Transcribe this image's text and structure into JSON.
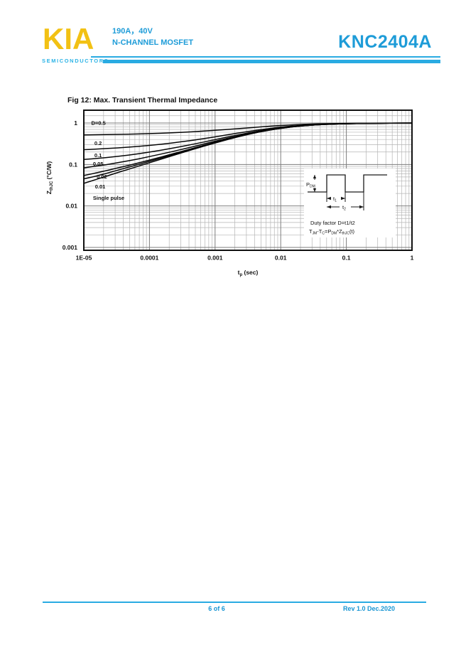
{
  "header": {
    "logo_text": "KIA",
    "logo_subtitle": "SEMICONDUCTORS",
    "spec_line1": "190A，40V",
    "spec_line2": "N-CHANNEL MOSFET",
    "part_number": "KNC2404A",
    "accent_cyan": "#29ABE2",
    "logo_yellow": "#F2C114"
  },
  "chart_data": {
    "type": "line",
    "title": "Fig 12: Max. Transient Thermal Impedance",
    "xlabel": "tp (sec)",
    "ylabel": "ZthJC (°C/W)",
    "x_scale": "log",
    "y_scale": "log",
    "xlim": [
      1e-05,
      1
    ],
    "ylim": [
      0.00086,
      2.03
    ],
    "grid": "on, log major and minor",
    "legend": "inline curve labels at left",
    "x_ticks": [
      {
        "v": 1e-05,
        "label": "1E-05"
      },
      {
        "v": 0.0001,
        "label": "0.0001"
      },
      {
        "v": 0.001,
        "label": "0.001"
      },
      {
        "v": 0.01,
        "label": "0.01"
      },
      {
        "v": 0.1,
        "label": "0.1"
      },
      {
        "v": 1,
        "label": "1"
      }
    ],
    "y_ticks": [
      {
        "v": 1,
        "label": "1"
      },
      {
        "v": 0.1,
        "label": "0.1"
      },
      {
        "v": 0.01,
        "label": "0.01"
      },
      {
        "v": 0.001,
        "label": "0.001"
      }
    ],
    "axis_titles": {
      "x_main": "t",
      "x_sub": "p",
      "x_rest": " (sec)",
      "y_main": "Z",
      "y_sub": "thJC",
      "y_rest": " (°C/W)"
    },
    "x": [
      1e-05,
      1.5e-05,
      2.2e-05,
      3.3e-05,
      4.7e-05,
      6.8e-05,
      0.0001,
      0.00015,
      0.00022,
      0.00033,
      0.00047,
      0.00068,
      0.001,
      0.0015,
      0.0022,
      0.0033,
      0.0047,
      0.0068,
      0.01,
      0.015,
      0.022,
      0.033,
      0.047,
      0.068,
      0.1,
      0.22,
      0.47,
      1
    ],
    "series": [
      {
        "name": "D=0.5",
        "values": [
          0.518,
          0.521,
          0.526,
          0.532,
          0.538,
          0.545,
          0.555,
          0.567,
          0.581,
          0.599,
          0.617,
          0.639,
          0.665,
          0.697,
          0.73,
          0.768,
          0.802,
          0.837,
          0.871,
          0.902,
          0.927,
          0.948,
          0.962,
          0.972,
          0.981,
          0.991,
          0.996,
          0.998
        ]
      },
      {
        "name": "0.2",
        "values": [
          0.228,
          0.234,
          0.242,
          0.251,
          0.261,
          0.273,
          0.288,
          0.307,
          0.33,
          0.358,
          0.386,
          0.422,
          0.464,
          0.515,
          0.569,
          0.629,
          0.684,
          0.739,
          0.794,
          0.844,
          0.883,
          0.916,
          0.938,
          0.956,
          0.969,
          0.986,
          0.993,
          0.997
        ]
      },
      {
        "name": "0.1",
        "values": [
          0.132,
          0.139,
          0.147,
          0.157,
          0.168,
          0.182,
          0.199,
          0.221,
          0.246,
          0.277,
          0.31,
          0.349,
          0.397,
          0.455,
          0.515,
          0.583,
          0.644,
          0.707,
          0.768,
          0.824,
          0.869,
          0.906,
          0.931,
          0.95,
          0.965,
          0.984,
          0.992,
          0.996
        ]
      },
      {
        "name": "0.05",
        "values": [
          0.083,
          0.091,
          0.099,
          0.111,
          0.122,
          0.136,
          0.155,
          0.178,
          0.204,
          0.237,
          0.271,
          0.313,
          0.364,
          0.424,
          0.488,
          0.56,
          0.625,
          0.69,
          0.755,
          0.815,
          0.861,
          0.9,
          0.927,
          0.948,
          0.964,
          0.983,
          0.992,
          0.996
        ]
      },
      {
        "name": "0.02",
        "values": [
          0.054,
          0.062,
          0.071,
          0.083,
          0.094,
          0.109,
          0.128,
          0.151,
          0.179,
          0.213,
          0.248,
          0.292,
          0.344,
          0.406,
          0.472,
          0.546,
          0.613,
          0.68,
          0.747,
          0.809,
          0.857,
          0.897,
          0.925,
          0.946,
          0.963,
          0.982,
          0.991,
          0.996
        ]
      },
      {
        "name": "0.01",
        "values": [
          0.045,
          0.052,
          0.061,
          0.073,
          0.085,
          0.1,
          0.119,
          0.143,
          0.17,
          0.205,
          0.241,
          0.284,
          0.337,
          0.4,
          0.466,
          0.541,
          0.609,
          0.677,
          0.745,
          0.807,
          0.856,
          0.896,
          0.924,
          0.946,
          0.962,
          0.982,
          0.991,
          0.996
        ]
      },
      {
        "name": "Single pulse",
        "values": [
          0.035,
          0.043,
          0.052,
          0.064,
          0.076,
          0.091,
          0.11,
          0.134,
          0.162,
          0.197,
          0.233,
          0.277,
          0.33,
          0.394,
          0.461,
          0.537,
          0.605,
          0.674,
          0.742,
          0.805,
          0.854,
          0.895,
          0.923,
          0.945,
          0.962,
          0.982,
          0.991,
          0.996
        ]
      }
    ],
    "annotations": [
      {
        "text": "D=0.5",
        "t": 1.3e-05,
        "z": 0.9
      },
      {
        "text": "0.2",
        "t": 1.45e-05,
        "z": 0.294
      },
      {
        "text": "0.1",
        "t": 1.45e-05,
        "z": 0.15
      },
      {
        "text": "0.05",
        "t": 1.38e-05,
        "z": 0.094
      },
      {
        "text": "0.02",
        "t": 1.57e-05,
        "z": 0.046
      },
      {
        "text": "0.01",
        "t": 1.48e-05,
        "z": 0.0265
      },
      {
        "text": "Single pulse",
        "t": 1.38e-05,
        "z": 0.0141
      }
    ]
  },
  "inset": {
    "pdm": {
      "main": "P",
      "sub": "DM"
    },
    "t1": {
      "main": "t",
      "sub": "1"
    },
    "t2": {
      "main": "t",
      "sub": "2"
    },
    "duty_factor": "Duty factor D=t1/t2",
    "formula": {
      "p1": "T",
      "s1": "JM",
      "p2": "-T",
      "s2": "C",
      "p3": "=P",
      "s3": "DM",
      "p4": "*Z",
      "s4": "thJC",
      "p5": "(t)"
    }
  },
  "footer": {
    "page_info": "6 of 6",
    "revision": "Rev 1.0 Dec.2020"
  }
}
